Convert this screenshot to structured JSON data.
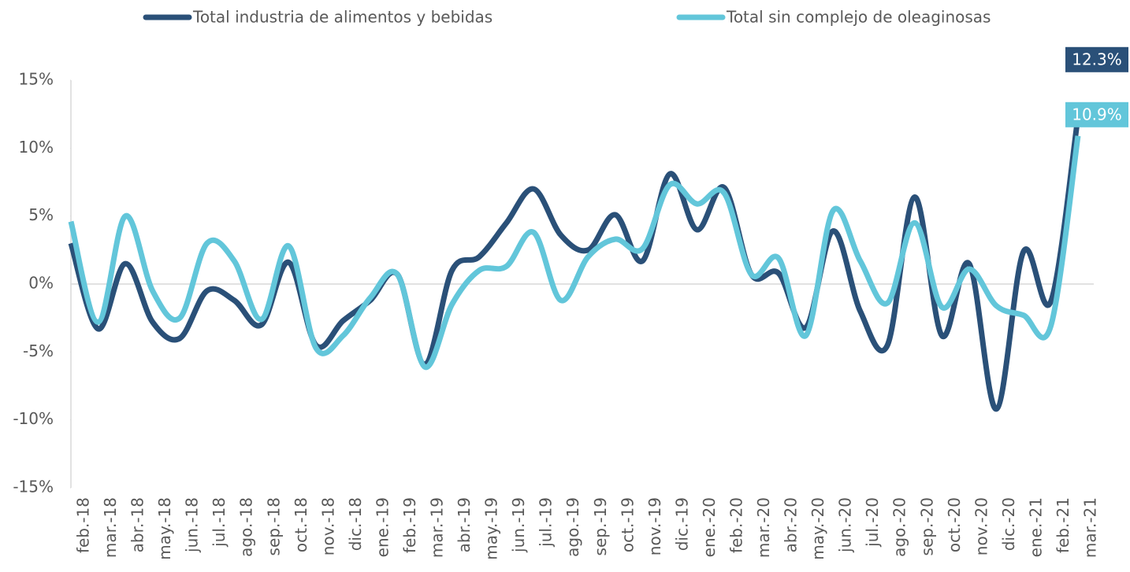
{
  "chart_data": {
    "type": "line",
    "categories": [
      "feb.-18",
      "mar.-18",
      "abr.-18",
      "may.-18",
      "jun.-18",
      "jul.-18",
      "ago.-18",
      "sep.-18",
      "oct.-18",
      "nov.-18",
      "dic.-18",
      "ene.-19",
      "feb.-19",
      "mar.-19",
      "abr.-19",
      "may.-19",
      "jun.-19",
      "jul.-19",
      "ago.-19",
      "sep.-19",
      "oct.-19",
      "nov.-19",
      "dic.-19",
      "ene.-20",
      "feb.-20",
      "mar.-20",
      "abr.-20",
      "may.-20",
      "jun.-20",
      "jul.-20",
      "ago.-20",
      "sep.-20",
      "oct.-20",
      "nov.-20",
      "dic.-20",
      "ene.-21",
      "feb.-21",
      "mar.-21"
    ],
    "series": [
      {
        "name": "Total industria de alimentos y bebidas",
        "color": "#2a5078",
        "values": [
          3.0,
          -3.3,
          1.5,
          -2.8,
          -4.0,
          -0.5,
          -1.2,
          -3.0,
          1.6,
          -4.5,
          -2.7,
          -1.2,
          0.7,
          -5.9,
          1.0,
          2.0,
          4.5,
          7.0,
          3.6,
          2.5,
          5.1,
          1.7,
          8.1,
          4.0,
          7.1,
          0.7,
          0.8,
          -3.2,
          3.9,
          -2.0,
          -4.5,
          6.4,
          -3.8,
          1.5,
          -9.2,
          2.4,
          -1.3,
          12.3
        ],
        "value_labels": [
          null,
          null,
          null,
          null,
          null,
          null,
          null,
          null,
          null,
          null,
          null,
          null,
          null,
          null,
          null,
          null,
          null,
          null,
          null,
          null,
          null,
          null,
          null,
          null,
          null,
          null,
          null,
          null,
          null,
          null,
          null,
          null,
          null,
          null,
          null,
          null,
          null,
          "12.3%"
        ]
      },
      {
        "name": "Total sin complejo de oleaginosas",
        "color": "#62c6da",
        "values": [
          4.6,
          -2.8,
          5.0,
          -0.5,
          -2.5,
          3.0,
          1.7,
          -2.6,
          2.8,
          -4.7,
          -3.8,
          -1.0,
          0.7,
          -6.1,
          -1.5,
          1.0,
          1.3,
          3.8,
          -1.2,
          2.0,
          3.3,
          2.6,
          7.3,
          5.9,
          6.7,
          0.7,
          1.9,
          -3.8,
          5.4,
          1.7,
          -1.4,
          4.5,
          -1.7,
          1.1,
          -1.6,
          -2.3,
          -3.1,
          10.9
        ],
        "value_labels": [
          null,
          null,
          null,
          null,
          null,
          null,
          null,
          null,
          null,
          null,
          null,
          null,
          null,
          null,
          null,
          null,
          null,
          null,
          null,
          null,
          null,
          null,
          null,
          null,
          null,
          null,
          null,
          null,
          null,
          null,
          null,
          null,
          null,
          null,
          null,
          null,
          null,
          "10.9%"
        ]
      }
    ],
    "ylim": [
      -15,
      15
    ],
    "yticks": [
      {
        "value": -15,
        "label": "-15%"
      },
      {
        "value": -10,
        "label": "-10%"
      },
      {
        "value": -5,
        "label": "-5%"
      },
      {
        "value": 0,
        "label": "0%"
      },
      {
        "value": 5,
        "label": "5%"
      },
      {
        "value": 10,
        "label": "10%"
      },
      {
        "value": 15,
        "label": "15%"
      }
    ],
    "legend": "top"
  }
}
